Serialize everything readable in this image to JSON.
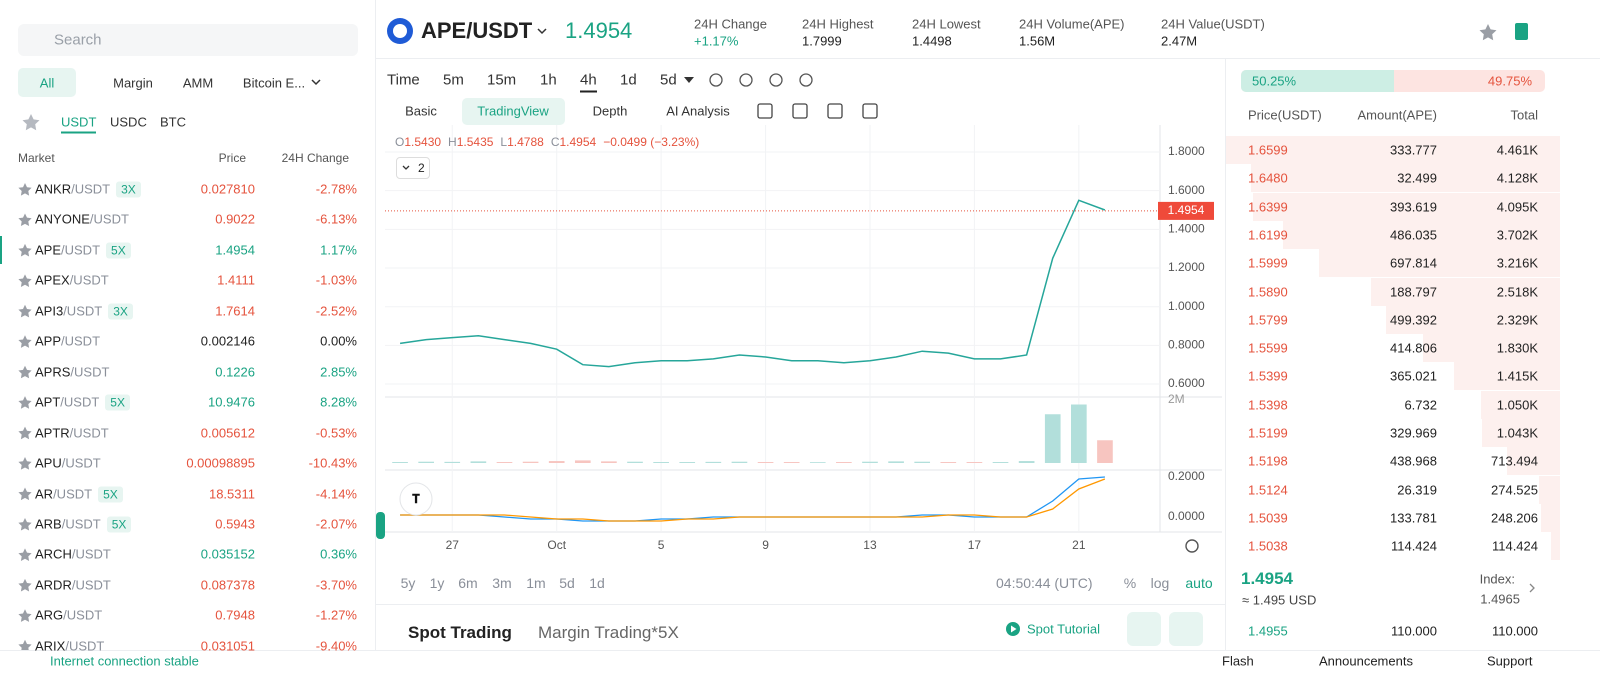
{
  "search": "Search",
  "tabs": [
    "All",
    "Margin",
    "AMM",
    "Bitcoin E..."
  ],
  "quotes": [
    "USDT",
    "USDC",
    "BTC"
  ],
  "market_headers": [
    "Market",
    "Price",
    "24H Change"
  ],
  "markets": [
    {
      "base": "ANKR",
      "quote": "/USDT",
      "leverage": "3X",
      "price": "0.027810",
      "change": "-2.78%"
    },
    {
      "base": "ANYONE",
      "quote": "/USDT",
      "price": "0.9022",
      "change": "-6.13%"
    },
    {
      "base": "APE",
      "quote": "/USDT",
      "leverage": "5X",
      "price": "1.4954",
      "change": "1.17%"
    },
    {
      "base": "APEX",
      "quote": "/USDT",
      "price": "1.4111",
      "change": "-1.03%"
    },
    {
      "base": "API3",
      "quote": "/USDT",
      "leverage": "3X",
      "price": "1.7614",
      "change": "-2.52%"
    },
    {
      "base": "APP",
      "quote": "/USDT",
      "price": "0.002146",
      "change": "0.00%"
    },
    {
      "base": "APRS",
      "quote": "/USDT",
      "price": "0.1226",
      "change": "2.85%"
    },
    {
      "base": "APT",
      "quote": "/USDT",
      "leverage": "5X",
      "price": "10.9476",
      "change": "8.28%"
    },
    {
      "base": "APTR",
      "quote": "/USDT",
      "price": "0.005612",
      "change": "-0.53%"
    },
    {
      "base": "APU",
      "quote": "/USDT",
      "price": "0.00098895",
      "change": "-10.43%"
    },
    {
      "base": "AR",
      "quote": "/USDT",
      "leverage": "5X",
      "price": "18.5311",
      "change": "-4.14%"
    },
    {
      "base": "ARB",
      "quote": "/USDT",
      "leverage": "5X",
      "price": "0.5943",
      "change": "-2.07%"
    },
    {
      "base": "ARCH",
      "quote": "/USDT",
      "price": "0.035152",
      "change": "0.36%"
    },
    {
      "base": "ARDR",
      "quote": "/USDT",
      "price": "0.087378",
      "change": "-3.70%"
    },
    {
      "base": "ARG",
      "quote": "/USDT",
      "price": "0.7948",
      "change": "-1.27%"
    },
    {
      "base": "ARIX",
      "quote": "/USDT",
      "price": "0.031051",
      "change": "-9.40%"
    }
  ],
  "header": {
    "pair": "APE/USDT",
    "price": "1.4954",
    "stats": [
      {
        "label": "24H Change",
        "value": "+1.17%"
      },
      {
        "label": "24H Highest",
        "value": "1.7999"
      },
      {
        "label": "24H Lowest",
        "value": "1.4498"
      },
      {
        "label": "24H Volume(APE)",
        "value": "1.56M"
      },
      {
        "label": "24H Value(USDT)",
        "value": "2.47M"
      }
    ]
  },
  "intervals": [
    "Time",
    "5m",
    "15m",
    "1h",
    "4h",
    "1d",
    "5d"
  ],
  "views": [
    "Basic",
    "TradingView",
    "Depth",
    "AI Analysis"
  ],
  "ohlc": [
    [
      "O",
      "1.5430"
    ],
    [
      "H",
      "1.5435"
    ],
    [
      "L",
      "1.4788"
    ],
    [
      "C",
      "1.4954"
    ]
  ],
  "ohlc_change": "−0.0499 (−3.23%)",
  "indicator_count": "2",
  "price_chart": {
    "type": "line",
    "color": "#26a69a",
    "categories": [
      null,
      null,
      "27",
      null,
      null,
      null,
      "Oct",
      null,
      null,
      null,
      "5",
      null,
      null,
      null,
      "9",
      null,
      null,
      null,
      "13",
      null,
      null,
      null,
      "17",
      null,
      null,
      null,
      "21",
      null
    ],
    "values": [
      0.81,
      0.83,
      0.84,
      0.85,
      0.83,
      0.81,
      0.78,
      0.7,
      0.69,
      0.71,
      0.72,
      0.72,
      0.73,
      0.75,
      0.74,
      0.72,
      0.72,
      0.71,
      0.72,
      0.74,
      0.77,
      0.76,
      0.73,
      0.73,
      0.75,
      1.25,
      1.55,
      1.5
    ],
    "ylim": [
      0.533,
      1.924
    ],
    "yticks": [
      {
        "value": 0.6,
        "label": "0.6000"
      },
      {
        "value": 0.8,
        "label": "0.8000"
      },
      {
        "value": 1.0,
        "label": "1.0000"
      },
      {
        "value": 1.2,
        "label": "1.2000"
      },
      {
        "value": 1.4,
        "label": "1.4000"
      },
      {
        "value": 1.6,
        "label": "1.6000"
      },
      {
        "value": 1.8,
        "label": "1.8000"
      }
    ],
    "grid": true
  },
  "volume_chart": {
    "type": "bar",
    "color": "#b2dfdb",
    "values": [
      30000,
      40000,
      35000,
      50000,
      30000,
      40000,
      60000,
      80000,
      50000,
      40000,
      30000,
      30000,
      35000,
      40000,
      30000,
      30000,
      25000,
      30000,
      40000,
      50000,
      40000,
      30000,
      30000,
      30000,
      60000,
      1500000,
      1800000,
      700000
    ],
    "ylim": [
      0,
      2000000
    ],
    "yticks": [
      {
        "value": 2000000,
        "label": "2M"
      }
    ]
  },
  "macd_chart": {
    "type": "line",
    "ylim": [
      -0.065,
      0.235
    ],
    "yticks": [
      {
        "value": 0.2,
        "label": "0.2000"
      },
      {
        "value": 0,
        "label": "0.0000"
      }
    ],
    "series": [
      {
        "color": "#2196f3",
        "values": [
          0.01,
          0.01,
          0.01,
          0.01,
          0.0,
          -0.01,
          -0.01,
          -0.02,
          -0.02,
          -0.02,
          -0.01,
          -0.01,
          0,
          0,
          0,
          0,
          0,
          0,
          0,
          0,
          0.01,
          0.01,
          0,
          0,
          0,
          0.08,
          0.19,
          0.2
        ]
      },
      {
        "color": "#ff9800",
        "values": [
          0.01,
          0.01,
          0.01,
          0.01,
          0.01,
          0,
          -0.01,
          -0.01,
          -0.02,
          -0.02,
          -0.02,
          -0.01,
          -0.01,
          0,
          0,
          0,
          0,
          0,
          0,
          0,
          0,
          0.01,
          0.01,
          0,
          0,
          0.04,
          0.14,
          0.19
        ]
      }
    ]
  },
  "range_buttons": [
    "5y",
    "1y",
    "6m",
    "3m",
    "1m",
    "5d",
    "1d"
  ],
  "clock": "04:50:44 (UTC)",
  "scale_options": [
    "%",
    "log",
    "auto"
  ],
  "trade_tabs": [
    "Spot Trading",
    "Margin Trading*5X"
  ],
  "tutorial": "Spot Tutorial",
  "book": {
    "buy_ratio": "50.25%",
    "sell_ratio": "49.75%",
    "headers": [
      "Price(USDT)",
      "Amount(APE)",
      "Total"
    ],
    "asks": [
      [
        "1.6599",
        "333.777",
        "4.461K"
      ],
      [
        "1.6480",
        "32.499",
        "4.128K"
      ],
      [
        "1.6399",
        "393.619",
        "4.095K"
      ],
      [
        "1.6199",
        "486.035",
        "3.702K"
      ],
      [
        "1.5999",
        "697.814",
        "3.216K"
      ],
      [
        "1.5890",
        "188.797",
        "2.518K"
      ],
      [
        "1.5799",
        "499.392",
        "2.329K"
      ],
      [
        "1.5599",
        "414.806",
        "1.830K"
      ],
      [
        "1.5399",
        "365.021",
        "1.415K"
      ],
      [
        "1.5398",
        "6.732",
        "1.050K"
      ],
      [
        "1.5199",
        "329.969",
        "1.043K"
      ],
      [
        "1.5198",
        "438.968",
        "713.494"
      ],
      [
        "1.5124",
        "26.319",
        "274.525"
      ],
      [
        "1.5039",
        "133.781",
        "248.206"
      ],
      [
        "1.5038",
        "114.424",
        "114.424"
      ]
    ],
    "usd": "≈ 1.495 USD",
    "index_label": "Index:",
    "index": "1.4965",
    "bids": [
      [
        "1.4955",
        "110.000",
        "110.000"
      ]
    ]
  },
  "footer": {
    "status": "Internet connection stable",
    "links": [
      "Flash",
      "Announcements",
      "Support"
    ]
  }
}
